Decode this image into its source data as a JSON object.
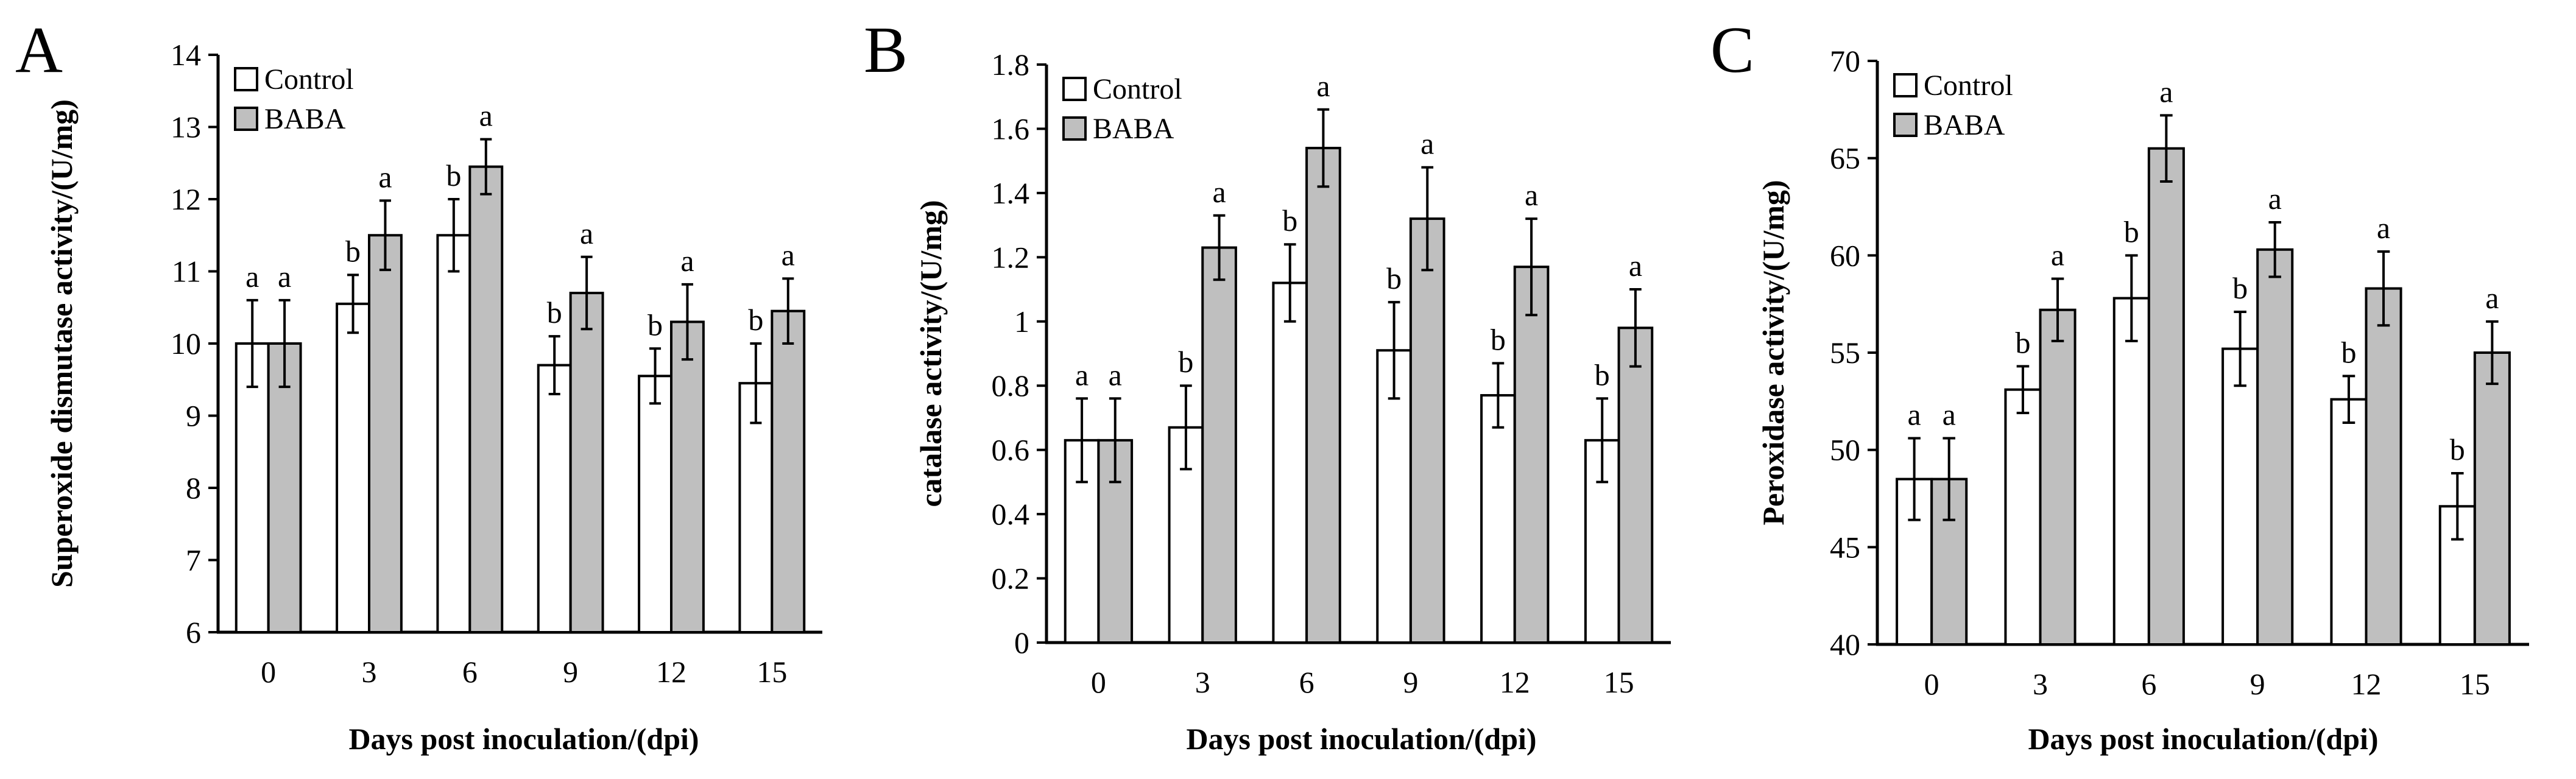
{
  "chart_data": [
    {
      "panel": "A",
      "type": "bar",
      "title": "",
      "xlabel": "Days post inoculation/(dpi)",
      "ylabel": "Superoxide dismutase activity/(U/mg)",
      "categories": [
        "0",
        "3",
        "6",
        "9",
        "12",
        "15"
      ],
      "ylim": [
        6,
        14
      ],
      "yticks": [
        6,
        7,
        8,
        9,
        10,
        11,
        12,
        13,
        14
      ],
      "legend": [
        "Control",
        "BABA"
      ],
      "legend_position": "top-left",
      "series": [
        {
          "name": "Control",
          "color": "#ffffff",
          "values": [
            10.0,
            10.55,
            11.5,
            9.7,
            9.55,
            9.45
          ],
          "errors": [
            0.6,
            0.4,
            0.5,
            0.4,
            0.38,
            0.55
          ],
          "labels": [
            "a",
            "b",
            "b",
            "b",
            "b",
            "b"
          ]
        },
        {
          "name": "BABA",
          "color": "#bfbfbf",
          "values": [
            10.0,
            11.5,
            12.45,
            10.7,
            10.3,
            10.45
          ],
          "errors": [
            0.6,
            0.48,
            0.38,
            0.5,
            0.52,
            0.45
          ],
          "labels": [
            "a",
            "a",
            "a",
            "a",
            "a",
            "a"
          ]
        }
      ]
    },
    {
      "panel": "B",
      "type": "bar",
      "title": "",
      "xlabel": "Days post inoculation/(dpi)",
      "ylabel": "catalase activity/(U/mg)",
      "categories": [
        "0",
        "3",
        "6",
        "9",
        "12",
        "15"
      ],
      "ylim": [
        0,
        1.8
      ],
      "yticks": [
        0,
        0.2,
        0.4,
        0.6,
        0.8,
        1,
        1.2,
        1.4,
        1.6,
        1.8
      ],
      "legend": [
        "Control",
        "BABA"
      ],
      "legend_position": "top-left",
      "series": [
        {
          "name": "Control",
          "color": "#ffffff",
          "values": [
            0.63,
            0.67,
            1.12,
            0.91,
            0.77,
            0.63
          ],
          "errors": [
            0.13,
            0.13,
            0.12,
            0.15,
            0.1,
            0.13
          ],
          "labels": [
            "a",
            "b",
            "b",
            "b",
            "b",
            "b"
          ]
        },
        {
          "name": "BABA",
          "color": "#bfbfbf",
          "values": [
            0.63,
            1.23,
            1.54,
            1.32,
            1.17,
            0.98
          ],
          "errors": [
            0.13,
            0.1,
            0.12,
            0.16,
            0.15,
            0.12
          ],
          "labels": [
            "a",
            "a",
            "a",
            "a",
            "a",
            "a"
          ]
        }
      ]
    },
    {
      "panel": "C",
      "type": "bar",
      "title": "",
      "xlabel": "Days post inoculation/(dpi)",
      "ylabel": "Peroxidase activity/(U/mg)",
      "categories": [
        "0",
        "3",
        "6",
        "9",
        "12",
        "15"
      ],
      "ylim": [
        40,
        70
      ],
      "yticks": [
        40,
        45,
        50,
        55,
        60,
        65,
        70
      ],
      "legend": [
        "Control",
        "BABA"
      ],
      "legend_position": "top-left",
      "series": [
        {
          "name": "Control",
          "color": "#ffffff",
          "values": [
            48.5,
            53.1,
            57.8,
            55.2,
            52.6,
            47.1
          ],
          "errors": [
            2.1,
            1.2,
            2.2,
            1.9,
            1.2,
            1.7
          ],
          "labels": [
            "a",
            "b",
            "b",
            "b",
            "b",
            "b"
          ]
        },
        {
          "name": "BABA",
          "color": "#bfbfbf",
          "values": [
            48.5,
            57.2,
            65.5,
            60.3,
            58.3,
            55.0
          ],
          "errors": [
            2.1,
            1.6,
            1.7,
            1.4,
            1.9,
            1.6
          ],
          "labels": [
            "a",
            "a",
            "a",
            "a",
            "a",
            "a"
          ]
        }
      ]
    }
  ]
}
